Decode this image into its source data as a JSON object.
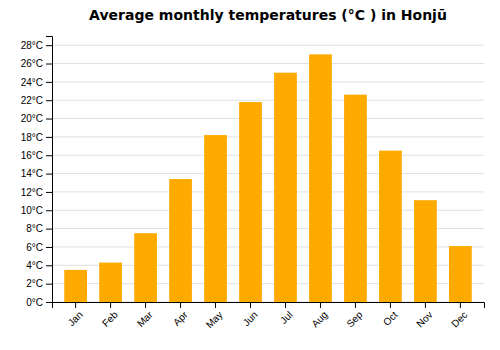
{
  "chart_data": {
    "type": "bar",
    "title": "Average monthly temperatures (°C ) in Honjū",
    "categories": [
      "Jan",
      "Feb",
      "Mar",
      "Apr",
      "May",
      "Jun",
      "Jul",
      "Aug",
      "Sep",
      "Oct",
      "Nov",
      "Dec"
    ],
    "values": [
      3.5,
      4.3,
      7.5,
      13.4,
      18.2,
      21.8,
      25.0,
      27.0,
      22.6,
      16.5,
      11.1,
      6.1
    ],
    "color": "#FFAA00",
    "ylim": [
      0,
      29
    ],
    "yticks": [
      {
        "value": 0,
        "label": "0°C"
      },
      {
        "value": 2,
        "label": "2°C"
      },
      {
        "value": 4,
        "label": "4°C"
      },
      {
        "value": 6,
        "label": "6°C"
      },
      {
        "value": 8,
        "label": "8°C"
      },
      {
        "value": 10,
        "label": "10°C"
      },
      {
        "value": 12,
        "label": "12°C"
      },
      {
        "value": 14,
        "label": "14°C"
      },
      {
        "value": 16,
        "label": "16°C"
      },
      {
        "value": 18,
        "label": "18°C"
      },
      {
        "value": 20,
        "label": "20°C"
      },
      {
        "value": 22,
        "label": "22°C"
      },
      {
        "value": 24,
        "label": "24°C"
      },
      {
        "value": 26,
        "label": "26°C"
      },
      {
        "value": 28,
        "label": "28°C"
      }
    ],
    "grid": true
  }
}
